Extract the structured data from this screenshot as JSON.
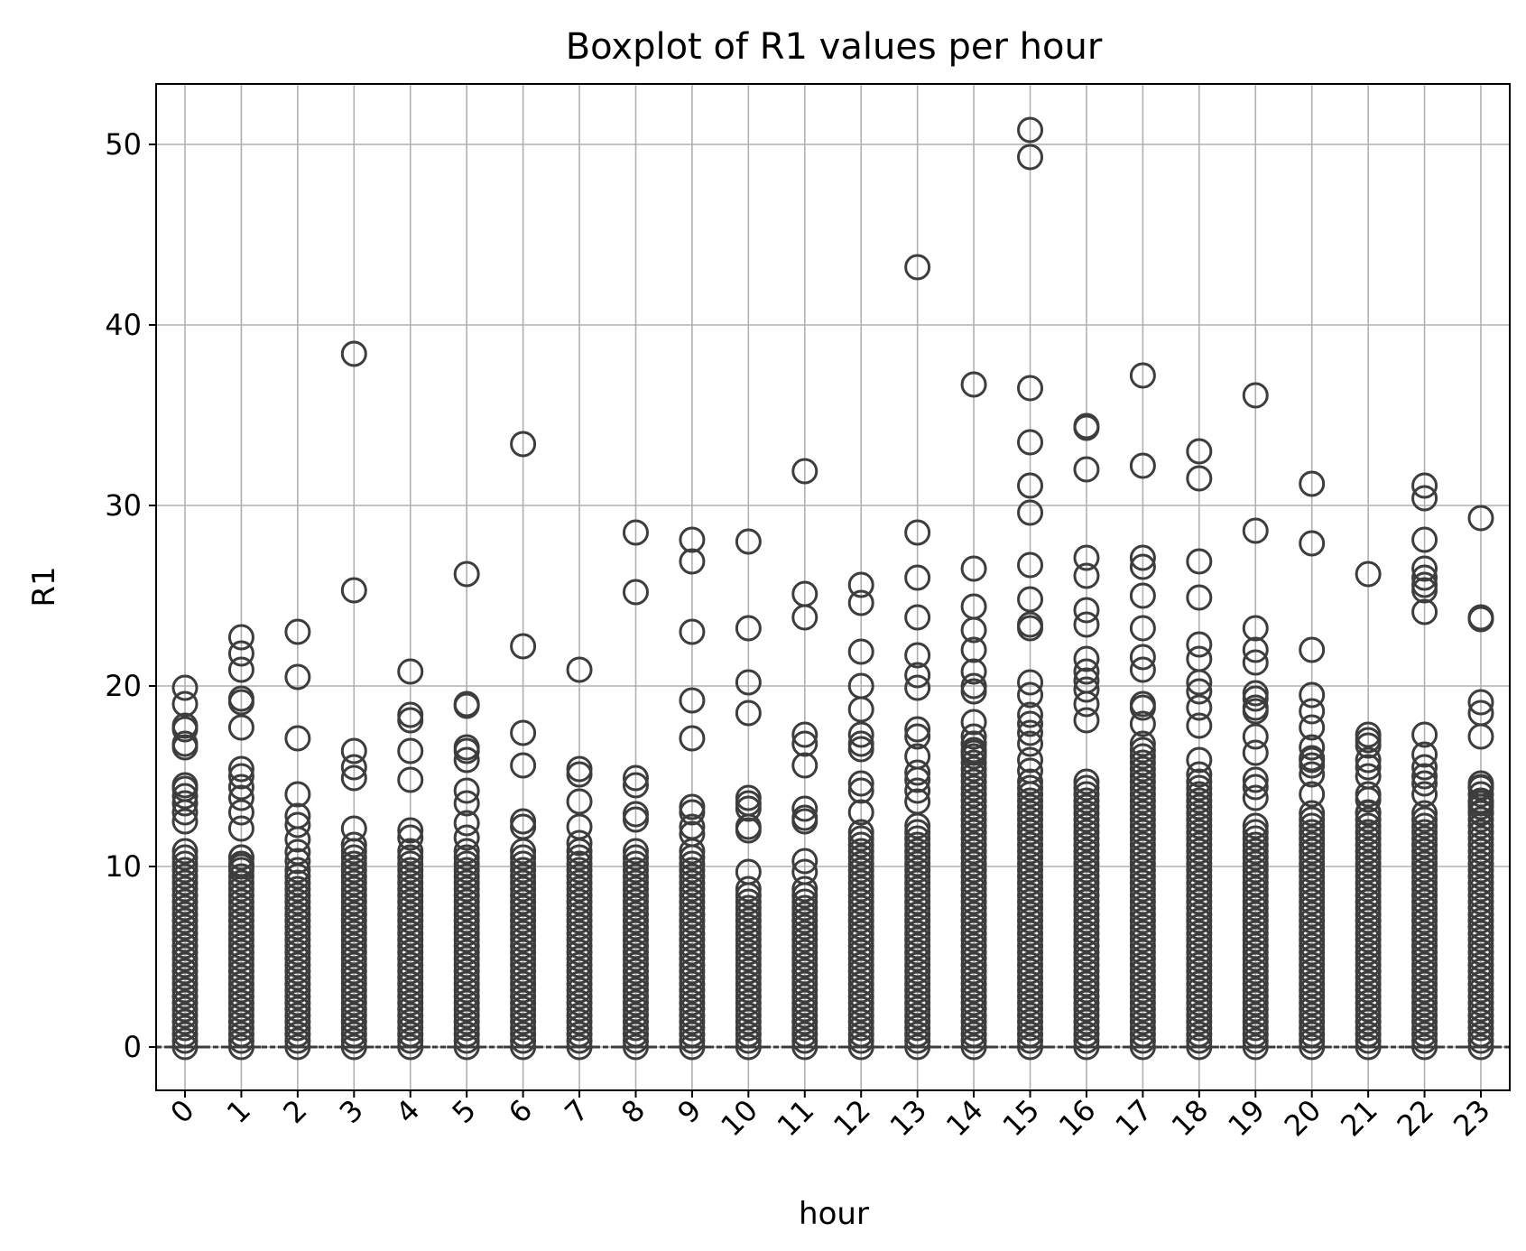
{
  "chart_data": {
    "type": "box",
    "title": "Boxplot of R1 values per hour",
    "xlabel": "hour",
    "ylabel": "R1",
    "categories": [
      "0",
      "1",
      "2",
      "3",
      "4",
      "5",
      "6",
      "7",
      "8",
      "9",
      "10",
      "11",
      "12",
      "13",
      "14",
      "15",
      "16",
      "17",
      "18",
      "19",
      "20",
      "21",
      "22",
      "23"
    ],
    "y_ticks": [
      0,
      10,
      20,
      30,
      40,
      50
    ],
    "ylim": [
      -2.4,
      53.3
    ],
    "grid": true,
    "color": "#3d3d3d",
    "box_stats": {
      "q1": 0,
      "median": 0,
      "q3": 0,
      "whisker_low": 0,
      "whisker_high": 0
    },
    "dense_outlier_top": [
      11,
      10.5,
      9.5,
      11.5,
      11,
      11,
      11,
      11,
      11,
      11,
      9,
      9,
      12,
      12.5,
      17,
      15,
      15,
      17,
      15,
      12.5,
      13,
      13,
      13,
      14.5
    ],
    "outliers": [
      [
        19.9,
        19.0,
        17.8,
        17.6,
        16.8,
        16.6,
        14.5,
        14.3,
        13.9,
        13.5,
        13.0,
        12.5
      ],
      [
        22.7,
        21.8,
        20.9,
        19.3,
        19.1,
        17.7,
        15.4,
        15.0,
        14.4,
        13.8,
        13.0,
        12.1,
        10.5,
        10.0
      ],
      [
        23.0,
        20.5,
        17.1,
        14.0,
        12.8,
        12.3,
        11.5,
        10.8,
        10.3,
        9.8
      ],
      [
        38.4,
        25.3,
        16.4,
        15.5,
        14.9,
        12.1
      ],
      [
        20.8,
        18.4,
        18.1,
        16.4,
        14.8,
        12.0,
        11.6
      ],
      [
        26.2,
        19.0,
        18.9,
        16.6,
        16.4,
        15.9,
        14.2,
        13.5,
        12.4,
        11.6
      ],
      [
        33.4,
        22.2,
        17.4,
        15.6,
        12.5,
        12.2
      ],
      [
        20.9,
        15.4,
        15.1,
        13.6,
        12.2,
        11.3
      ],
      [
        28.5,
        25.2,
        14.9,
        14.5,
        12.9,
        12.6
      ],
      [
        28.1,
        26.9,
        23.0,
        19.2,
        17.1,
        13.3,
        13.0,
        12.2,
        11.8
      ],
      [
        28.0,
        23.2,
        20.2,
        18.5,
        13.8,
        13.5,
        13.2,
        12.2,
        12.0,
        9.7
      ],
      [
        31.9,
        25.1,
        23.8,
        17.3,
        16.8,
        15.6,
        13.2,
        12.7,
        12.5,
        10.3,
        9.7
      ],
      [
        25.6,
        24.6,
        21.9,
        20.0,
        18.7,
        17.3,
        16.8,
        16.5,
        14.6,
        14.2,
        13.0
      ],
      [
        43.2,
        28.5,
        26.0,
        23.8,
        21.7,
        20.6,
        19.9,
        17.6,
        17.2,
        16.1,
        15.2,
        14.8,
        14.2,
        13.6
      ],
      [
        36.7,
        26.5,
        24.4,
        23.1,
        22.0,
        20.8,
        20.0,
        19.7,
        18.0,
        17.2,
        16.8,
        16.3
      ],
      [
        50.8,
        49.3,
        36.5,
        33.5,
        31.1,
        29.6,
        26.7,
        24.8,
        23.4,
        23.2,
        20.2,
        19.5,
        18.4,
        17.9,
        17.4,
        16.8,
        15.9,
        15.3
      ],
      [
        34.4,
        34.3,
        32.0,
        27.1,
        26.1,
        24.2,
        23.4,
        21.5,
        20.8,
        20.3,
        19.8,
        19.0,
        18.1
      ],
      [
        37.2,
        32.2,
        27.1,
        26.6,
        25.0,
        23.2,
        21.6,
        20.9,
        19.0,
        18.8,
        17.9
      ],
      [
        33.0,
        31.5,
        26.9,
        24.9,
        22.3,
        21.5,
        20.2,
        19.7,
        18.8,
        17.8,
        15.9,
        15.1
      ],
      [
        36.1,
        28.6,
        23.2,
        22.0,
        21.3,
        19.6,
        19.3,
        18.8,
        18.6,
        17.2,
        16.3,
        14.8,
        14.4,
        13.8
      ],
      [
        31.2,
        27.9,
        22.0,
        19.5,
        18.6,
        17.7,
        16.6,
        16.0,
        15.9,
        15.6,
        15.1,
        14.0
      ],
      [
        26.2,
        17.3,
        17.0,
        16.7,
        15.9,
        15.5,
        15.0,
        14.0,
        13.7,
        13.0
      ],
      [
        31.1,
        30.4,
        28.1,
        26.5,
        26.0,
        25.6,
        25.3,
        24.1,
        17.3,
        16.2,
        15.5,
        15.0,
        14.6,
        14.0
      ],
      [
        29.3,
        23.8,
        23.7,
        19.1,
        18.5,
        17.2,
        14.6,
        14.4,
        13.5,
        13.0
      ]
    ]
  }
}
